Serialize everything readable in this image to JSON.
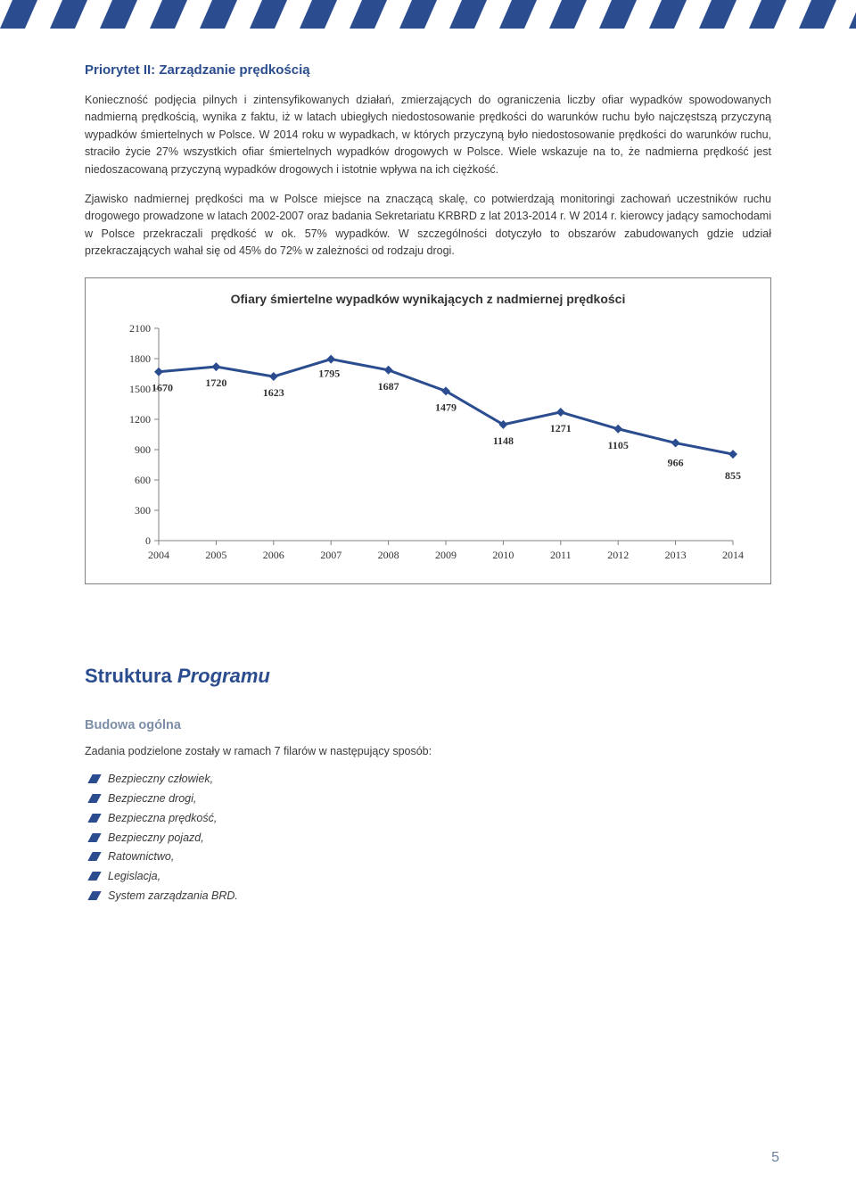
{
  "header": {
    "stripe_color": "#2b4d8f",
    "stripe_bg": "#ffffff"
  },
  "title": "Priorytet II: Zarządzanie prędkością",
  "paragraphs": [
    "Konieczność podjęcia pilnych i zintensyfikowanych działań, zmierzających do ograniczenia liczby ofiar wypadków spowodowanych nadmierną prędkością, wynika z faktu, iż w latach ubiegłych niedostosowanie prędkości do warunków ruchu było najczęstszą przyczyną wypadków śmiertelnych w Polsce. W 2014 roku w wypadkach, w których przyczyną było niedostosowanie prędkości do warunków ruchu, straciło życie 27% wszystkich ofiar śmiertelnych wypadków drogowych w Polsce. Wiele wskazuje na to, że nadmierna prędkość jest niedoszacowaną przyczyną wypadków drogowych i istotnie wpływa na ich ciężkość.",
    "Zjawisko nadmiernej prędkości ma w Polsce miejsce na znaczącą skalę, co potwierdzają monitoringi zachowań uczestników ruchu drogowego prowadzone w latach 2002-2007 oraz badania Sekretariatu KRBRD z lat  2013-2014 r. W 2014 r. kierowcy jadący samochodami w Polsce przekraczali prędkość w ok. 57% wypadków. W szczególności dotyczyło to obszarów zabudowanych gdzie udział przekraczających wahał się od 45% do 72% w zależności od rodzaju drogi."
  ],
  "chart": {
    "type": "line",
    "title": "Ofiary śmiertelne wypadków wynikających z nadmiernej prędkości",
    "years": [
      "2004",
      "2005",
      "2006",
      "2007",
      "2008",
      "2009",
      "2010",
      "2011",
      "2012",
      "2013",
      "2014"
    ],
    "values": [
      1670,
      1720,
      1623,
      1795,
      1687,
      1479,
      1148,
      1271,
      1105,
      966,
      855
    ],
    "ylim": [
      0,
      2100
    ],
    "ytick_step": 300,
    "yticks": [
      0,
      300,
      600,
      900,
      1200,
      1500,
      1800,
      2100
    ],
    "line_color": "#2b4d8f",
    "marker_color": "#2b4d8f",
    "marker_size": 5,
    "line_width": 3,
    "label_fontsize": 12,
    "axis_fontsize": 12,
    "background_color": "#ffffff",
    "axis_color": "#808080",
    "text_color": "#333333"
  },
  "section2": {
    "heading_main": "Struktura ",
    "heading_italic": "Programu",
    "subsection": "Budowa ogólna",
    "intro": "Zadania podzielone zostały w ramach 7 filarów w następujący sposób:",
    "bullets": [
      "Bezpieczny człowiek,",
      "Bezpieczne drogi,",
      "Bezpieczna prędkość,",
      "Bezpieczny pojazd,",
      "Ratownictwo,",
      "Legislacja,",
      "System zarządzania BRD."
    ]
  },
  "page_number": "5"
}
